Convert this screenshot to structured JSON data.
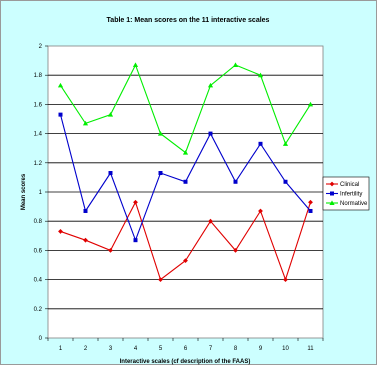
{
  "chart_data": {
    "type": "line",
    "title": "Table 1: Mean scores on the 11 interactive scales",
    "xlabel": "Interactive scales (cf description of the FAAS)",
    "ylabel": "Mean scores",
    "categories": [
      "1",
      "2",
      "3",
      "4",
      "5",
      "6",
      "7",
      "8",
      "9",
      "10",
      "11"
    ],
    "ylim": [
      0,
      2
    ],
    "yticks": [
      "0",
      "0.2",
      "0.4",
      "0.6",
      "0.8",
      "1",
      "1.2",
      "1.4",
      "1.6",
      "1.8",
      "2"
    ],
    "grid": true,
    "legend": "right",
    "series": [
      {
        "name": "Clinical",
        "color": "#e00000",
        "marker": "diamond",
        "values": [
          0.73,
          0.67,
          0.6,
          0.93,
          0.4,
          0.53,
          0.8,
          0.6,
          0.87,
          0.4,
          0.93
        ]
      },
      {
        "name": "Infertility",
        "color": "#0000cc",
        "marker": "square",
        "values": [
          1.53,
          0.87,
          1.13,
          0.67,
          1.13,
          1.07,
          1.4,
          1.07,
          1.33,
          1.07,
          0.87
        ]
      },
      {
        "name": "Normative",
        "color": "#00ee00",
        "marker": "triangle",
        "values": [
          1.73,
          1.47,
          1.53,
          1.87,
          1.4,
          1.27,
          1.73,
          1.87,
          1.8,
          1.33,
          1.6
        ]
      }
    ]
  }
}
